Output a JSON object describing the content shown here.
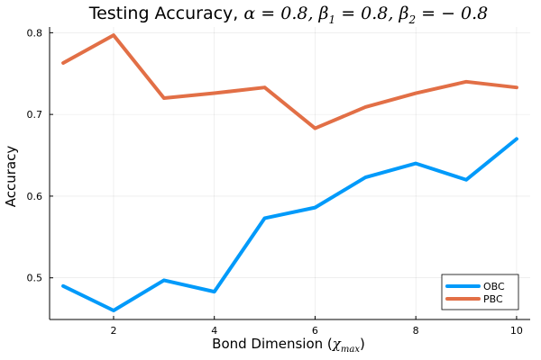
{
  "chart_data": {
    "type": "line",
    "title": {
      "prefix": "Testing Accuracy, ",
      "alpha_symbol": "α",
      "alpha_expr": " = 0.8, ",
      "beta_symbol": "β",
      "beta1_sub": "1",
      "beta1_expr": " = 0.8, ",
      "beta2_sub": "2",
      "beta2_expr": " = − 0.8"
    },
    "xlabel": {
      "text": "Bond Dimension (",
      "chi": "χ",
      "sub": "max",
      "close": ")"
    },
    "ylabel": "Accuracy",
    "x": [
      1,
      2,
      3,
      4,
      5,
      6,
      7,
      8,
      9,
      10
    ],
    "xticks": [
      2,
      4,
      6,
      8,
      10
    ],
    "yticks": [
      0.5,
      0.6,
      0.7,
      0.8
    ],
    "xlim": [
      0.73,
      10.27
    ],
    "ylim": [
      0.449,
      0.807
    ],
    "grid": true,
    "legend_position": "bottom-right",
    "series": [
      {
        "name": "OBC",
        "color": "#009AFA",
        "values": [
          0.49,
          0.46,
          0.497,
          0.483,
          0.573,
          0.586,
          0.623,
          0.64,
          0.62,
          0.67
        ]
      },
      {
        "name": "PBC",
        "color": "#E26F46",
        "values": [
          0.763,
          0.797,
          0.72,
          0.726,
          0.733,
          0.683,
          0.709,
          0.726,
          0.74,
          0.733
        ]
      }
    ]
  }
}
